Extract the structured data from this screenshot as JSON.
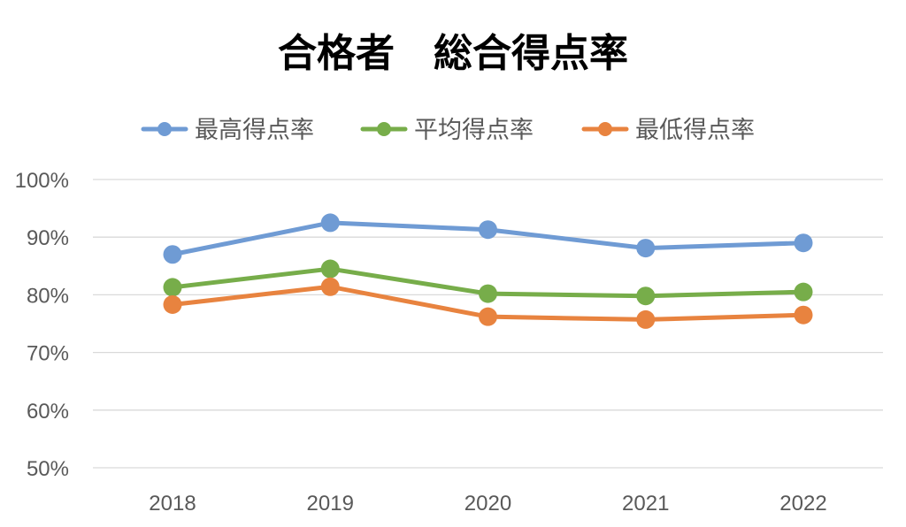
{
  "chart_data": {
    "type": "line",
    "title": "合格者　総合得点率",
    "categories": [
      "2018",
      "2019",
      "2020",
      "2021",
      "2022"
    ],
    "ylim": [
      0.5,
      1.0
    ],
    "yticks": [
      "100%",
      "90%",
      "80%",
      "70%",
      "60%",
      "50%"
    ],
    "legend_position": "top",
    "grid": true,
    "series": [
      {
        "name": "最高得点率",
        "color": "#6f9bd4",
        "values": [
          0.87,
          0.925,
          0.913,
          0.881,
          0.89
        ]
      },
      {
        "name": "平均得点率",
        "color": "#77ad4a",
        "values": [
          0.813,
          0.845,
          0.802,
          0.798,
          0.805
        ]
      },
      {
        "name": "最低得点率",
        "color": "#e8833f",
        "values": [
          0.783,
          0.814,
          0.762,
          0.757,
          0.765
        ]
      }
    ]
  }
}
